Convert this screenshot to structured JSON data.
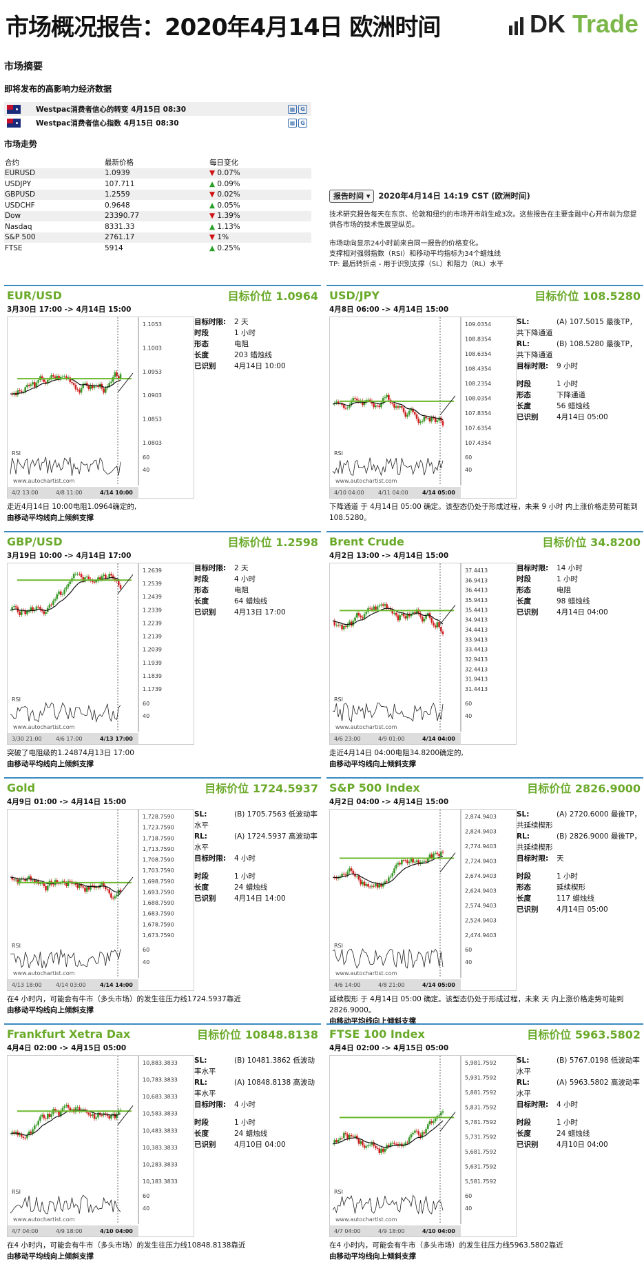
{
  "header": {
    "title": "市场概况报告：2020年4月14日 欧洲时间",
    "logo_dk": "DK",
    "logo_trade": "Trade"
  },
  "summary": {
    "title": "市场摘要",
    "events_title": "即将发布的高影响力经济数据",
    "events": [
      {
        "text": "Westpac消费者信心的转变 4月15日 08:30"
      },
      {
        "text": "Westpac消费者信心指数 4月15日 08:30"
      }
    ],
    "market_title": "市场走势",
    "market_headers": [
      "合约",
      "最新价格",
      "每日变化"
    ],
    "market_rows": [
      {
        "name": "EURUSD",
        "price": "1.0939",
        "dir": "down",
        "change": "0.07%"
      },
      {
        "name": "USDJPY",
        "price": "107.711",
        "dir": "up",
        "change": "0.09%"
      },
      {
        "name": "GBPUSD",
        "price": "1.2559",
        "dir": "down",
        "change": "0.02%"
      },
      {
        "name": "USDCHF",
        "price": "0.9648",
        "dir": "up",
        "change": "0.05%"
      },
      {
        "name": "Dow",
        "price": "23390.77",
        "dir": "down",
        "change": "1.39%"
      },
      {
        "name": "Nasdaq",
        "price": "8331.33",
        "dir": "up",
        "change": "1.13%"
      },
      {
        "name": "S&P 500",
        "price": "2761.17",
        "dir": "down",
        "change": "1%"
      },
      {
        "name": "FTSE",
        "price": "5914",
        "dir": "up",
        "change": "0.25%"
      }
    ]
  },
  "report": {
    "button": "报告时间",
    "time": "2020年4月14日 14:19 CST (欧洲时间)",
    "desc1": "技术研究报告每天在东京、伦敦和纽约的市场开市前生成3次。这些报告在主要金融中心开市前为您提供各市场的技术性展望纵览。",
    "desc2": "市场动向显示24小时前来自同一报告的价格变化。",
    "desc3": "支撑相对强弱指数（RSI）和移动平均指标为34个蜡烛线",
    "desc4": "TP: 最后转折点 - 用于识别支撑（SL）和阻力（RL）水平"
  },
  "panels": [
    {
      "name": "EUR/USD",
      "target": "目标价位 1.0964",
      "range": "3月30日 17:00 -> 4月14日 15:00",
      "info": [
        [
          "目标时限:",
          "2 天"
        ],
        [
          "时段",
          "1 小时"
        ],
        [
          "形态",
          "电阻"
        ],
        [
          "长度",
          "203 蜡烛线"
        ],
        [
          "已识别",
          "4月14日 10:00"
        ]
      ],
      "foot1": "走近4月14日 10:00电阻1.0964确定的,",
      "foot2": "由移动平均线向上倾斜支撑",
      "yticks": [
        "1.1053",
        "1.1003",
        "1.0953",
        "1.0903",
        "1.0853",
        "1.0803"
      ],
      "xticks": [
        "4/2 13:00",
        "4/8 11:00",
        "4/14 10:00"
      ]
    },
    {
      "name": "USD/JPY",
      "target": "目标价位 108.5280",
      "range": "4月8日 06:00 -> 4月14日 15:00",
      "info": [
        [
          "SL:",
          "(A) 107.5015 最後TP，共下降通道"
        ],
        [
          "RL:",
          "(B) 108.5280 最後TP，共下降通道"
        ],
        [
          "目标时限:",
          "9 小时"
        ],
        [
          "",
          ""
        ],
        [
          "时段",
          "1 小时"
        ],
        [
          "形态",
          "下降通道"
        ],
        [
          "长度",
          "56 蜡烛线"
        ],
        [
          "已识别",
          "4月14日 05:00"
        ]
      ],
      "foot1": "下降通道 于 4月14日 05:00 确定。该型态仍处于形成过程，未来 9 小时 内上涨价格走势可能到 108.5280。",
      "foot2": "",
      "yticks": [
        "109.0354",
        "108.8354",
        "108.6354",
        "108.4354",
        "108.2354",
        "108.0354",
        "107.8354",
        "107.6354",
        "107.4354"
      ],
      "xticks": [
        "4/10 04:00",
        "4/11 04:00",
        "4/14 05:00"
      ]
    },
    {
      "name": "GBP/USD",
      "target": "目标价位 1.2598",
      "range": "3月19日 10:00 -> 4月14日 17:00",
      "info": [
        [
          "目标时限:",
          "2 天"
        ],
        [
          "时段",
          "4 小时"
        ],
        [
          "形态",
          "电阻"
        ],
        [
          "长度",
          "64 蜡烛线"
        ],
        [
          "已识别",
          "4月13日 17:00"
        ]
      ],
      "foot1": "突破了电阻级的1.24874月13日 17:00",
      "foot2": "由移动平均线向上倾斜支撑",
      "yticks": [
        "1.2639",
        "1.2539",
        "1.2439",
        "1.2339",
        "1.2239",
        "1.2139",
        "1.2039",
        "1.1939",
        "1.1839",
        "1.1739"
      ],
      "xticks": [
        "3/30 21:00",
        "4/6 17:00",
        "4/13 17:00"
      ]
    },
    {
      "name": "Brent Crude",
      "target": "目标价位 34.8200",
      "range": "4月2日 13:00 -> 4月14日 15:00",
      "info": [
        [
          "目标时限:",
          "14 小时"
        ],
        [
          "时段",
          "1 小时"
        ],
        [
          "形态",
          "电阻"
        ],
        [
          "长度",
          "98 蜡烛线"
        ],
        [
          "已识别",
          "4月14日 04:00"
        ]
      ],
      "foot1": "走近4月14日 04:00电阻34.8200确定的,",
      "foot2": "由移动平均线向上倾斜支撑",
      "yticks": [
        "37.4413",
        "36.9413",
        "36.4413",
        "35.9413",
        "35.4413",
        "34.9413",
        "34.4413",
        "33.9413",
        "33.4413",
        "32.9413",
        "32.4413",
        "31.9413",
        "31.4413"
      ],
      "xticks": [
        "4/6 23:00",
        "4/9 01:00",
        "4/14 04:00"
      ]
    },
    {
      "name": "Gold",
      "target": "目标价位 1724.5937",
      "range": "4月9日 01:00 -> 4月14日 15:00",
      "info": [
        [
          "SL:",
          "(B) 1705.7563 低波动率水平"
        ],
        [
          "RL:",
          "(A) 1724.5937 高波动率水平"
        ],
        [
          "目标时限:",
          "4 小时"
        ],
        [
          "",
          ""
        ],
        [
          "时段",
          "1 小时"
        ],
        [
          "长度",
          "24 蜡烛线"
        ],
        [
          "已识别",
          "4月14日 14:00"
        ]
      ],
      "foot1": "在4 小时内，可能会有牛市（多头市场）的发生往压力线1724.5937靠近",
      "foot2": "由移动平均线向上倾斜支撑",
      "yticks": [
        "1,728.7590",
        "1,723.7590",
        "1,718.7590",
        "1,713.7590",
        "1,708.7590",
        "1,703.7590",
        "1,698.7590",
        "1,693.7590",
        "1,688.7590",
        "1,683.7590",
        "1,678.7590",
        "1,673.7590"
      ],
      "xticks": [
        "4/13 18:00",
        "4/14 03:00",
        "4/14 14:00"
      ]
    },
    {
      "name": "S&P 500 Index",
      "target": "目标价位 2826.9000",
      "range": "4月2日 04:00 -> 4月14日 15:00",
      "info": [
        [
          "SL:",
          "(A) 2720.6000 最後TP，共延续楔形"
        ],
        [
          "RL:",
          "(B) 2826.9000 最後TP，共延续楔形"
        ],
        [
          "目标时限:",
          "天"
        ],
        [
          "",
          ""
        ],
        [
          "时段",
          "1 小时"
        ],
        [
          "形态",
          "延续楔形"
        ],
        [
          "长度",
          "117 蜡烛线"
        ],
        [
          "已识别",
          "4月14日 05:00"
        ]
      ],
      "foot1": "延续楔形 于 4月14日 05:00 确定。该型态仍处于形成过程，未来 天 内上涨价格走势可能到 2826.9000。",
      "foot2": "由移动平均线向上倾斜支撑",
      "yticks": [
        "2,874.9403",
        "2,824.9403",
        "2,774.9403",
        "2,724.9403",
        "2,674.9403",
        "2,624.9403",
        "2,574.9403",
        "2,524.9403",
        "2,474.9403"
      ],
      "xticks": [
        "4/6 14:00",
        "4/8 21:00",
        "4/14 05:00"
      ]
    },
    {
      "name": "Frankfurt Xetra Dax",
      "target": "目标价位 10848.8138",
      "range": "4月4日 02:00 -> 4月15日 05:00",
      "info": [
        [
          "SL:",
          "(B) 10481.3862 低波动率水平"
        ],
        [
          "RL:",
          "(A) 10848.8138 高波动率水平"
        ],
        [
          "目标时限:",
          "4 小时"
        ],
        [
          "",
          ""
        ],
        [
          "时段",
          "1 小时"
        ],
        [
          "长度",
          "24 蜡烛线"
        ],
        [
          "已识别",
          "4月10日 04:00"
        ]
      ],
      "foot1": "在4 小时内，可能会有牛市（多头市场）的发生往压力线10848.8138靠近",
      "foot2": "由移动平均线向上倾斜支撑",
      "yticks": [
        "10,883.3833",
        "10,783.3833",
        "10,683.3833",
        "10,583.3833",
        "10,483.3833",
        "10,383.3833",
        "10,283.3833",
        "10,183.3833"
      ],
      "xticks": [
        "4/7 04:00",
        "4/9 18:00",
        "4/10 04:00"
      ]
    },
    {
      "name": "FTSE 100 Index",
      "target": "目标价位 5963.5802",
      "range": "4月4日 02:00 -> 4月15日 05:00",
      "info": [
        [
          "SL:",
          "(B) 5767.0198 低波动率水平"
        ],
        [
          "RL:",
          "(A) 5963.5802 高波动率水平"
        ],
        [
          "目标时限:",
          "4 小时"
        ],
        [
          "",
          ""
        ],
        [
          "时段",
          "1 小时"
        ],
        [
          "长度",
          "24 蜡烛线"
        ],
        [
          "已识别",
          "4月10日 04:00"
        ]
      ],
      "foot1": "在4 小时内，可能会有牛市（多头市场）的发生往压力线5963.5802靠近",
      "foot2": "由移动平均线向上倾斜支撑",
      "yticks": [
        "5,981.7592",
        "5,931.7592",
        "5,881.7592",
        "5,831.7592",
        "5,781.7592",
        "5,731.7592",
        "5,681.7592",
        "5,631.7592",
        "5,581.7592"
      ],
      "xticks": [
        "4/7 04:00",
        "4/9 18:00",
        "4/10 04:00"
      ]
    }
  ],
  "chart_common": {
    "rsi_label": "RSI",
    "rsi_ticks": [
      "60",
      "40"
    ],
    "watermark": "www.autochartist.com"
  },
  "colors": {
    "accent_green": "#6aaa2a",
    "border_blue": "#3a8ac0",
    "down_red": "#d01010",
    "up_green": "#2aa02a"
  }
}
